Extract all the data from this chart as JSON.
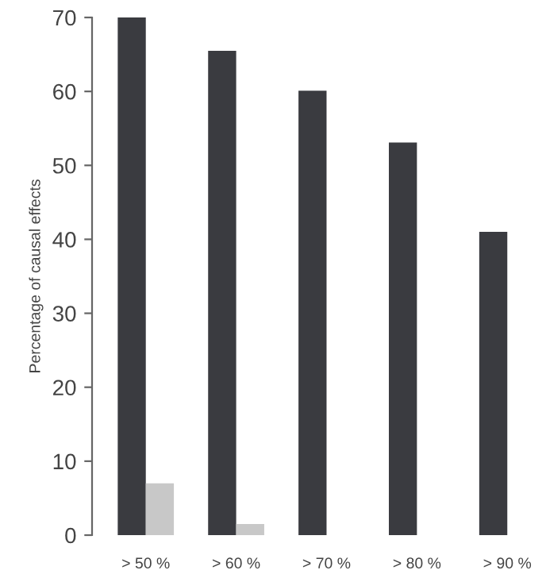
{
  "chart_data": {
    "type": "bar",
    "ylabel": "Percentage of causal effects",
    "categories": [
      "> 50 %",
      "> 60 %",
      "> 70 %",
      "> 80 %",
      "> 90 %"
    ],
    "series": [
      {
        "color": "#3a3b40",
        "values": [
          70,
          65.5,
          60.1,
          53.1,
          41.0
        ]
      },
      {
        "color": "#c8c8c8",
        "values": [
          7.0,
          1.5,
          0,
          0,
          0
        ]
      }
    ],
    "ylim": [
      0,
      70
    ],
    "yticks": [
      0,
      10,
      20,
      30,
      40,
      50,
      60,
      70
    ],
    "grid": false,
    "legend": false
  }
}
